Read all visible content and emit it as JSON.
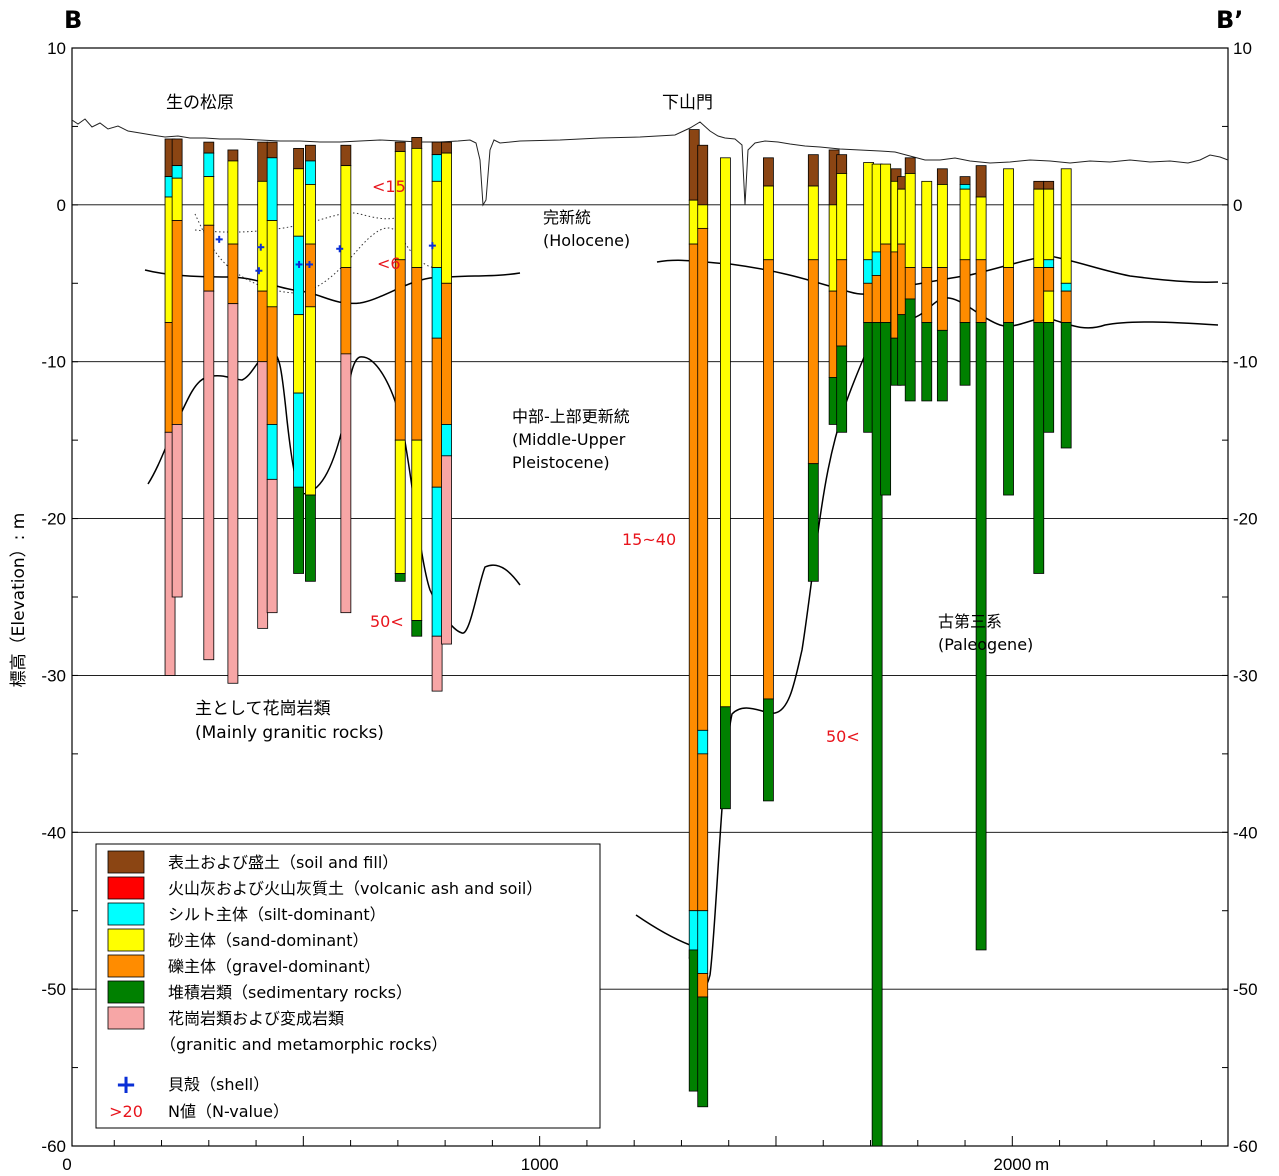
{
  "section": {
    "left_end": "B",
    "right_end": "B’",
    "y_axis_label": "標高（Elevation）: m",
    "x_unit": "m",
    "x_ticks": [
      {
        "value": 0,
        "label": "0"
      },
      {
        "value": 1000,
        "label": "1000"
      },
      {
        "value": 2000,
        "label": "2000"
      }
    ],
    "y_ticks": [
      {
        "value": 10,
        "label": "10"
      },
      {
        "value": 0,
        "label": "0"
      },
      {
        "value": -10,
        "label": "-10"
      },
      {
        "value": -20,
        "label": "-20"
      },
      {
        "value": -30,
        "label": "-30"
      },
      {
        "value": -40,
        "label": "-40"
      },
      {
        "value": -50,
        "label": "-50"
      },
      {
        "value": -60,
        "label": "-60"
      }
    ]
  },
  "places": {
    "left": "生の松原",
    "right": "下山門"
  },
  "units": {
    "holocene_ja": "完新統",
    "holocene_en": "(Holocene)",
    "pleistocene_ja": "中部-上部更新統",
    "pleistocene_en1": "(Middle-Upper",
    "pleistocene_en2": "Pleistocene)",
    "paleogene_ja": "古第三系",
    "paleogene_en": "(Paleogene)",
    "granite_ja": "主として花崗岩類",
    "granite_en": "(Mainly granitic rocks)"
  },
  "n_values": {
    "lt15": "<15",
    "lt6": "<6",
    "gt50_left": "50<",
    "range": "15~40",
    "gt50_right": "50<"
  },
  "colors": {
    "soil": "#8b4513",
    "ash": "#ff0000",
    "silt": "#00ffff",
    "sand": "#ffff00",
    "gravel": "#ff8c00",
    "sedimentary": "#008000",
    "granite": "#f7a6a6",
    "shell": "#0a2fd6",
    "nvalue": "#e8141c"
  },
  "legend": [
    {
      "key": "soil",
      "label": "表土および盛土（soil and fill）"
    },
    {
      "key": "ash",
      "label": "火山灰および火山灰質土（volcanic ash and soil）"
    },
    {
      "key": "silt",
      "label": "シルト主体（silt-dominant）"
    },
    {
      "key": "sand",
      "label": "砂主体（sand-dominant）"
    },
    {
      "key": "gravel",
      "label": "礫主体（gravel-dominant）"
    },
    {
      "key": "sedimentary",
      "label": "堆積岩類（sedimentary rocks）"
    },
    {
      "key": "granite",
      "label": "花崗岩類および変成岩類",
      "label2": "（granitic and metamorphic rocks）"
    }
  ],
  "legend_shell": {
    "symbol": "+",
    "label": "貝殻（shell）"
  },
  "legend_n": {
    "symbol": ">20",
    "label": "N値（N-value）"
  },
  "boreholes": [
    {
      "x": 218,
      "layers": [
        [
          "soil",
          4.2,
          1.8
        ],
        [
          "silt",
          1.8,
          0.5
        ],
        [
          "sand",
          0.5,
          -7.5
        ],
        [
          "gravel",
          -7.5,
          -14.5
        ],
        [
          "granite",
          -14.5,
          -30
        ]
      ]
    },
    {
      "x": 233,
      "layers": [
        [
          "soil",
          4.2,
          2.5
        ],
        [
          "silt",
          2.5,
          1.7
        ],
        [
          "sand",
          1.7,
          -1
        ],
        [
          "gravel",
          -1,
          -14
        ],
        [
          "granite",
          -14,
          -25
        ]
      ]
    },
    {
      "x": 300,
      "layers": [
        [
          "soil",
          4,
          3.3
        ],
        [
          "silt",
          3.3,
          1.8
        ],
        [
          "sand",
          1.8,
          -1.3
        ],
        [
          "gravel",
          -1.3,
          -5.5
        ],
        [
          "granite",
          -5.5,
          -29
        ]
      ]
    },
    {
      "x": 351,
      "layers": [
        [
          "soil",
          3.5,
          2.8
        ],
        [
          "sand",
          2.8,
          -2.5
        ],
        [
          "gravel",
          -2.5,
          -6.3
        ],
        [
          "granite",
          -6.3,
          -30.5
        ]
      ]
    },
    {
      "x": 414,
      "layers": [
        [
          "soil",
          4,
          1.5
        ],
        [
          "sand",
          1.5,
          -5.5
        ],
        [
          "gravel",
          -5.5,
          -10
        ],
        [
          "granite",
          -10,
          -27
        ]
      ]
    },
    {
      "x": 434,
      "layers": [
        [
          "soil",
          4,
          3
        ],
        [
          "silt",
          3,
          -1
        ],
        [
          "sand",
          -1,
          -6.5
        ],
        [
          "gravel",
          -6.5,
          -14
        ],
        [
          "silt",
          -14,
          -17.5
        ],
        [
          "granite",
          -17.5,
          -26
        ]
      ]
    },
    {
      "x": 490,
      "layers": [
        [
          "soil",
          3.6,
          2.3
        ],
        [
          "sand",
          2.3,
          -2
        ],
        [
          "silt",
          -2,
          -7
        ],
        [
          "sand",
          -7,
          -12
        ],
        [
          "silt",
          -12,
          -18
        ],
        [
          "sedimentary",
          -18,
          -23.5
        ]
      ]
    },
    {
      "x": 515,
      "layers": [
        [
          "soil",
          3.8,
          2.8
        ],
        [
          "silt",
          2.8,
          1.3
        ],
        [
          "sand",
          1.3,
          -2.5
        ],
        [
          "gravel",
          -2.5,
          -6.5
        ],
        [
          "sand",
          -6.5,
          -18.5
        ],
        [
          "sedimentary",
          -18.5,
          -24
        ]
      ]
    },
    {
      "x": 590,
      "layers": [
        [
          "soil",
          3.8,
          2.5
        ],
        [
          "sand",
          2.5,
          -4
        ],
        [
          "gravel",
          -4,
          -9.5
        ],
        [
          "granite",
          -9.5,
          -26
        ]
      ]
    },
    {
      "x": 705,
      "layers": [
        [
          "soil",
          4,
          3.4
        ],
        [
          "sand",
          3.4,
          -3.5
        ],
        [
          "gravel",
          -3.5,
          -15
        ],
        [
          "sand",
          -15,
          -23.5
        ],
        [
          "sedimentary",
          -23.5,
          -24
        ]
      ]
    },
    {
      "x": 740,
      "layers": [
        [
          "soil",
          4.3,
          3.6
        ],
        [
          "sand",
          3.6,
          -4
        ],
        [
          "gravel",
          -4,
          -15
        ],
        [
          "sand",
          -15,
          -26.5
        ],
        [
          "sedimentary",
          -26.5,
          -27.5
        ]
      ]
    },
    {
      "x": 783,
      "layers": [
        [
          "soil",
          4,
          3.2
        ],
        [
          "silt",
          3.2,
          1.5
        ],
        [
          "sand",
          1.5,
          -4
        ],
        [
          "silt",
          -4,
          -8.5
        ],
        [
          "gravel",
          -8.5,
          -18
        ],
        [
          "silt",
          -18,
          -27.5
        ],
        [
          "granite",
          -27.5,
          -31
        ]
      ]
    },
    {
      "x": 803,
      "layers": [
        [
          "soil",
          4,
          3.3
        ],
        [
          "sand",
          3.3,
          -5
        ],
        [
          "gravel",
          -5,
          -14
        ],
        [
          "silt",
          -14,
          -16
        ],
        [
          "granite",
          -16,
          -28
        ]
      ]
    },
    {
      "x": 1327,
      "layers": [
        [
          "soil",
          4.8,
          0.3
        ],
        [
          "sand",
          0.3,
          -2.5
        ],
        [
          "gravel",
          -2.5,
          -45
        ],
        [
          "silt",
          -45,
          -48
        ],
        [
          "gravel",
          -48,
          -47.5
        ],
        [
          "sedimentary",
          -47.5,
          -56.5
        ]
      ]
    },
    {
      "x": 1345,
      "layers": [
        [
          "soil",
          3.8,
          0
        ],
        [
          "sand",
          0,
          -1.5
        ],
        [
          "gravel",
          -1.5,
          -33.5
        ],
        [
          "silt",
          -33.5,
          -35
        ],
        [
          "gravel",
          -35,
          -45
        ],
        [
          "silt",
          -45,
          -49
        ],
        [
          "gravel",
          -49,
          -50.5
        ],
        [
          "sedimentary",
          -50.5,
          -57.5
        ]
      ]
    },
    {
      "x": 1393,
      "layers": [
        [
          "sand",
          3,
          -32
        ],
        [
          "sedimentary",
          -32,
          -38.5
        ]
      ]
    },
    {
      "x": 1484,
      "layers": [
        [
          "soil",
          3,
          1.2
        ],
        [
          "sand",
          1.2,
          -3.5
        ],
        [
          "gravel",
          -3.5,
          -31.5
        ],
        [
          "sedimentary",
          -31.5,
          -38
        ]
      ]
    },
    {
      "x": 1579,
      "layers": [
        [
          "soil",
          3.2,
          1.2
        ],
        [
          "sand",
          1.2,
          -3.5
        ],
        [
          "gravel",
          -3.5,
          -16.5
        ],
        [
          "sedimentary",
          -16.5,
          -24
        ]
      ]
    },
    {
      "x": 1623,
      "layers": [
        [
          "soil",
          3.5,
          0
        ],
        [
          "sand",
          0,
          -5.5
        ],
        [
          "gravel",
          -5.5,
          -11
        ],
        [
          "sedimentary",
          -11,
          -14
        ]
      ]
    },
    {
      "x": 1639,
      "layers": [
        [
          "soil",
          3.2,
          2
        ],
        [
          "sand",
          2,
          -3.5
        ],
        [
          "gravel",
          -3.5,
          -9
        ],
        [
          "sedimentary",
          -9,
          -14.5
        ]
      ]
    },
    {
      "x": 1696,
      "layers": [
        [
          "sand",
          2.7,
          -3.5
        ],
        [
          "silt",
          -3.5,
          -5
        ],
        [
          "gravel",
          -5,
          -7.5
        ],
        [
          "sedimentary",
          -7.5,
          -14.5
        ]
      ]
    },
    {
      "x": 1714,
      "layers": [
        [
          "sand",
          2.6,
          -3
        ],
        [
          "silt",
          -3,
          -4.5
        ],
        [
          "gravel",
          -4.5,
          -7.5
        ],
        [
          "sedimentary",
          -7.5,
          -60
        ]
      ]
    },
    {
      "x": 1732,
      "layers": [
        [
          "sand",
          2.6,
          -2.5
        ],
        [
          "gravel",
          -2.5,
          -7.5
        ],
        [
          "sedimentary",
          -7.5,
          -18.5
        ]
      ]
    },
    {
      "x": 1754,
      "layers": [
        [
          "soil",
          2.3,
          1.5
        ],
        [
          "sand",
          1.5,
          -3
        ],
        [
          "gravel",
          -3,
          -8.5
        ],
        [
          "sedimentary",
          -8.5,
          -11.5
        ]
      ]
    },
    {
      "x": 1768,
      "layers": [
        [
          "soil",
          1.8,
          1
        ],
        [
          "sand",
          1,
          -2.5
        ],
        [
          "gravel",
          -2.5,
          -7
        ],
        [
          "sedimentary",
          -7,
          -11.5
        ]
      ]
    },
    {
      "x": 1784,
      "layers": [
        [
          "soil",
          3,
          2
        ],
        [
          "sand",
          2,
          -4
        ],
        [
          "gravel",
          -4,
          -6
        ],
        [
          "sedimentary",
          -6,
          -12.5
        ]
      ]
    },
    {
      "x": 1819,
      "layers": [
        [
          "sand",
          1.5,
          -4
        ],
        [
          "gravel",
          -4,
          -7.5
        ],
        [
          "sedimentary",
          -7.5,
          -12.5
        ]
      ]
    },
    {
      "x": 1852,
      "layers": [
        [
          "soil",
          2.3,
          1.3
        ],
        [
          "sand",
          1.3,
          -4
        ],
        [
          "gravel",
          -4,
          -8
        ],
        [
          "sedimentary",
          -8,
          -12.5
        ]
      ]
    },
    {
      "x": 1900,
      "layers": [
        [
          "soil",
          1.8,
          1.3
        ],
        [
          "silt",
          1.3,
          1
        ],
        [
          "sand",
          1,
          -3.5
        ],
        [
          "gravel",
          -3.5,
          -7.5
        ],
        [
          "sedimentary",
          -7.5,
          -11.5
        ]
      ]
    },
    {
      "x": 1934,
      "layers": [
        [
          "soil",
          2.5,
          0.5
        ],
        [
          "sand",
          0.5,
          -3.5
        ],
        [
          "gravel",
          -3.5,
          -7.5
        ],
        [
          "sedimentary",
          -7.5,
          -47.5
        ]
      ]
    },
    {
      "x": 1992,
      "layers": [
        [
          "sand",
          2.3,
          -4
        ],
        [
          "gravel",
          -4,
          -7.5
        ],
        [
          "sedimentary",
          -7.5,
          -18.5
        ]
      ]
    },
    {
      "x": 2056,
      "layers": [
        [
          "soil",
          1.5,
          1
        ],
        [
          "sand",
          1,
          -4
        ],
        [
          "gravel",
          -4,
          -7.5
        ],
        [
          "sedimentary",
          -7.5,
          -23.5
        ]
      ]
    },
    {
      "x": 2077,
      "layers": [
        [
          "soil",
          1.5,
          1
        ],
        [
          "sand",
          1,
          -3.5
        ],
        [
          "silt",
          -3.5,
          -4
        ],
        [
          "gravel",
          -4,
          -5.5
        ],
        [
          "sand",
          -5.5,
          -7.5
        ],
        [
          "sedimentary",
          -7.5,
          -14.5
        ]
      ]
    },
    {
      "x": 2114,
      "layers": [
        [
          "sand",
          2.3,
          -5
        ],
        [
          "silt",
          -5,
          -5.5
        ],
        [
          "gravel",
          -5.5,
          -7.5
        ],
        [
          "sedimentary",
          -7.5,
          -15.5
        ]
      ]
    }
  ],
  "shells": [
    {
      "x": 322,
      "y": -2.2
    },
    {
      "x": 410,
      "y": -2.7
    },
    {
      "x": 406,
      "y": -4.2
    },
    {
      "x": 491,
      "y": -3.8
    },
    {
      "x": 513,
      "y": -3.8
    },
    {
      "x": 577,
      "y": -2.8
    },
    {
      "x": 773,
      "y": -2.6
    }
  ]
}
